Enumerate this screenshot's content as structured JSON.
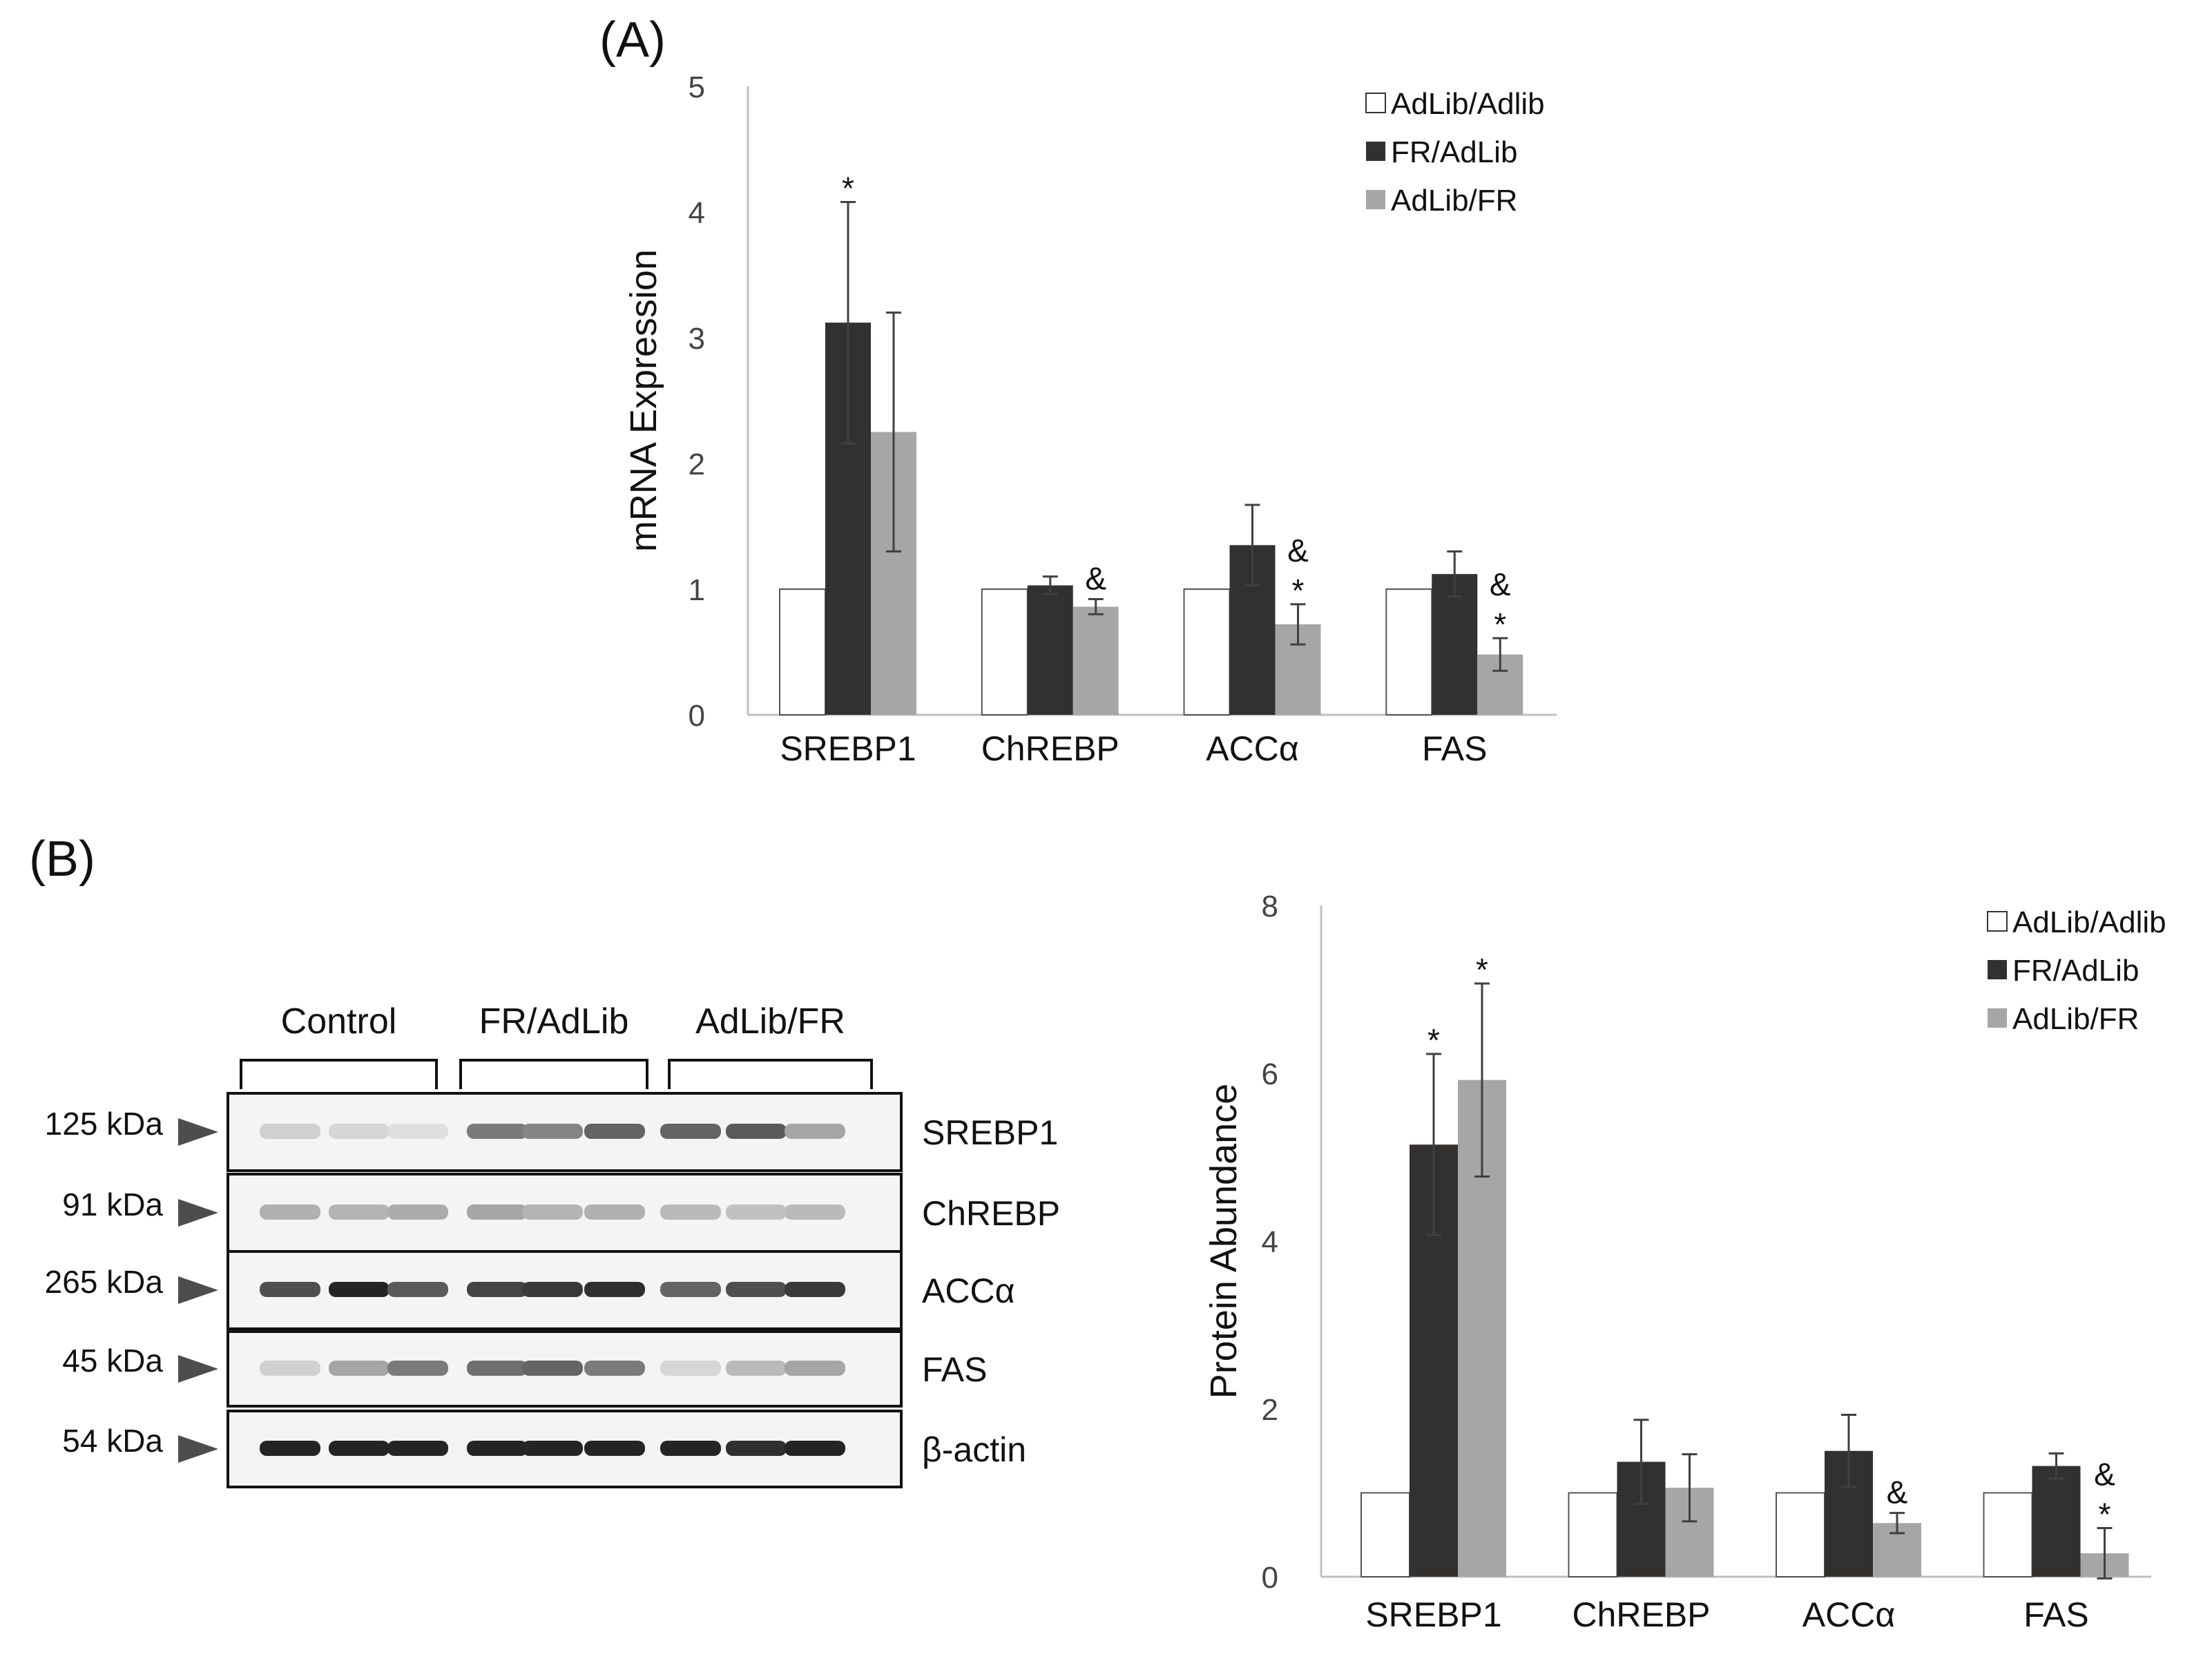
{
  "panels": {
    "a_label": "(A)",
    "b_label": "(B)"
  },
  "colors": {
    "AdLib/Adlib": "#ffffff",
    "FR/AdLib": "#333030",
    "AdLib/FR": "#a6a6a6",
    "axis": "#bfbfbf",
    "errorbar": "#404040"
  },
  "chart_data": [
    {
      "type": "bar",
      "title": "",
      "xlabel": "",
      "ylabel": "mRNA Expression",
      "ylim": [
        0,
        5
      ],
      "yticks": [
        0,
        1,
        2,
        3,
        4,
        5
      ],
      "categories": [
        "SREBP1",
        "ChREBP",
        "ACCα",
        "FAS"
      ],
      "legend_position": "top-right",
      "grid": false,
      "series": [
        {
          "name": "AdLib/Adlib",
          "values": [
            1.0,
            1.0,
            1.0,
            1.0
          ],
          "errors": [
            0,
            0,
            0,
            0
          ],
          "annotations": [
            "",
            "",
            "",
            ""
          ]
        },
        {
          "name": "FR/AdLib",
          "values": [
            3.12,
            1.03,
            1.35,
            1.12
          ],
          "errors": [
            0.96,
            0.07,
            0.32,
            0.18
          ],
          "annotations": [
            "*",
            "",
            "",
            ""
          ]
        },
        {
          "name": "AdLib/FR",
          "values": [
            2.25,
            0.86,
            0.72,
            0.48
          ],
          "errors": [
            0.95,
            0.06,
            0.16,
            0.13
          ],
          "annotations": [
            "",
            "&",
            "&\n*",
            "&\n*"
          ]
        }
      ]
    },
    {
      "type": "bar",
      "title": "",
      "xlabel": "",
      "ylabel": "Protein Abundance",
      "ylim": [
        0,
        8
      ],
      "yticks": [
        0,
        2,
        4,
        6,
        8
      ],
      "categories": [
        "SREBP1",
        "ChREBP",
        "ACCα",
        "FAS"
      ],
      "legend_position": "top-right",
      "grid": false,
      "series": [
        {
          "name": "AdLib/Adlib",
          "values": [
            1.0,
            1.0,
            1.0,
            1.0
          ],
          "errors": [
            0,
            0,
            0,
            0
          ],
          "annotations": [
            "",
            "",
            "",
            ""
          ]
        },
        {
          "name": "FR/AdLib",
          "values": [
            5.15,
            1.37,
            1.5,
            1.32
          ],
          "errors": [
            1.08,
            0.5,
            0.43,
            0.15
          ],
          "annotations": [
            "*",
            "",
            "",
            ""
          ]
        },
        {
          "name": "AdLib/FR",
          "values": [
            5.92,
            1.06,
            0.64,
            0.28
          ],
          "errors": [
            1.15,
            0.4,
            0.12,
            0.3
          ],
          "annotations": [
            "*",
            "",
            "&",
            "&\n*"
          ]
        }
      ]
    }
  ],
  "western_blot": {
    "groups": [
      "Control",
      "FR/AdLib",
      "AdLib/FR"
    ],
    "lanes_per_group": 3,
    "rows": [
      {
        "protein": "SREBP1",
        "mw": "125 kDa",
        "intensities": [
          0.15,
          0.12,
          0.08,
          0.55,
          0.5,
          0.65,
          0.65,
          0.7,
          0.35
        ]
      },
      {
        "protein": "ChREBP",
        "mw": "91 kDa",
        "intensities": [
          0.3,
          0.28,
          0.32,
          0.35,
          0.28,
          0.3,
          0.25,
          0.22,
          0.25
        ]
      },
      {
        "protein": "ACCα",
        "mw": "265 kDa",
        "intensities": [
          0.75,
          0.95,
          0.7,
          0.8,
          0.85,
          0.9,
          0.65,
          0.75,
          0.85
        ]
      },
      {
        "protein": "FAS",
        "mw": "45 kDa",
        "intensities": [
          0.15,
          0.35,
          0.55,
          0.6,
          0.65,
          0.55,
          0.12,
          0.25,
          0.35
        ]
      },
      {
        "protein": "β-actin",
        "mw": "54 kDa",
        "intensities": [
          0.95,
          0.95,
          0.95,
          0.95,
          0.95,
          0.95,
          0.95,
          0.9,
          0.95
        ]
      }
    ]
  }
}
